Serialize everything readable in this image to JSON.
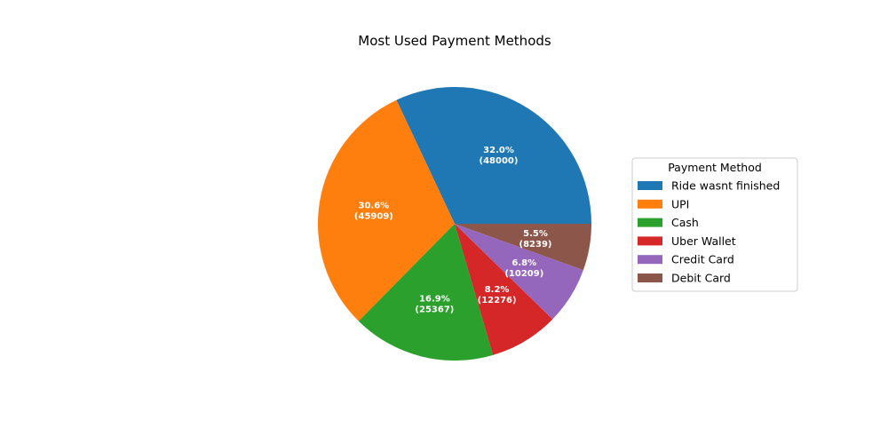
{
  "chart_data": {
    "type": "pie",
    "title": "Most Used Payment Methods",
    "legend_title": "Payment Method",
    "legend_position": "right",
    "start_angle_deg": 0,
    "direction": "counterclockwise",
    "slices": [
      {
        "label": "Ride wasnt finished",
        "value": 48000,
        "percent": "32.0%",
        "color": "#1f77b4"
      },
      {
        "label": "UPI",
        "value": 45909,
        "percent": "30.6%",
        "color": "#ff7f0e"
      },
      {
        "label": "Cash",
        "value": 25367,
        "percent": "16.9%",
        "color": "#2ca02c"
      },
      {
        "label": "Uber Wallet",
        "value": 12276,
        "percent": "8.2%",
        "color": "#d62728"
      },
      {
        "label": "Credit Card",
        "value": 10209,
        "percent": "6.8%",
        "color": "#9467bd"
      },
      {
        "label": "Debit Card",
        "value": 8239,
        "percent": "5.5%",
        "color": "#8c564b"
      }
    ]
  }
}
